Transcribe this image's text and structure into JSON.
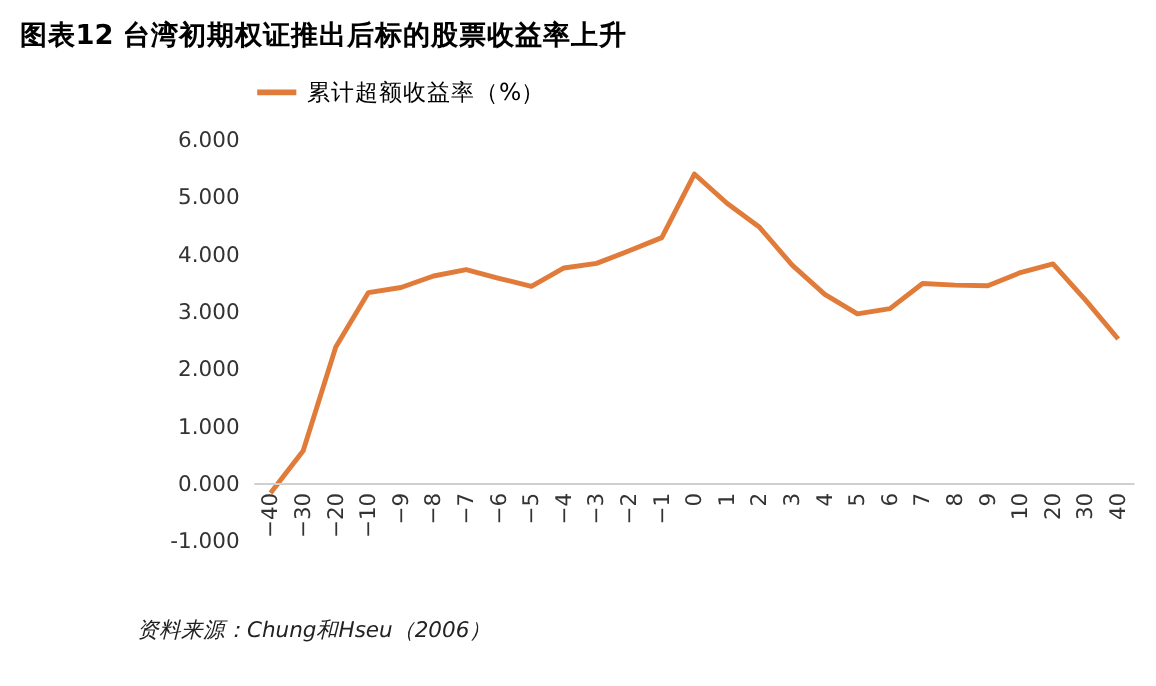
{
  "chart_data": {
    "type": "line",
    "title": "图表12  台湾初期权证推出后标的股票收益率上升",
    "categories": [
      "−40",
      "−30",
      "−20",
      "−10",
      "−9",
      "−8",
      "−7",
      "−6",
      "−5",
      "−4",
      "−3",
      "−2",
      "−1",
      "0",
      "1",
      "2",
      "3",
      "4",
      "5",
      "6",
      "7",
      "8",
      "9",
      "10",
      "20",
      "30",
      "40"
    ],
    "series": [
      {
        "name": "累计超额收益率（%）",
        "color": "#e07b39",
        "values": [
          -0.16,
          0.58,
          2.39,
          3.34,
          3.43,
          3.63,
          3.74,
          3.59,
          3.45,
          3.77,
          3.85,
          4.07,
          4.3,
          5.41,
          4.9,
          4.48,
          3.82,
          3.31,
          2.97,
          3.06,
          3.5,
          3.47,
          3.46,
          3.69,
          3.84,
          3.21,
          2.53
        ]
      }
    ],
    "ylim": [
      -1,
      6
    ],
    "yticks": [
      {
        "value": -1,
        "label": "-1.000"
      },
      {
        "value": 0,
        "label": "0.000"
      },
      {
        "value": 1,
        "label": "1.000"
      },
      {
        "value": 2,
        "label": "2.000"
      },
      {
        "value": 3,
        "label": "3.000"
      },
      {
        "value": 4,
        "label": "4.000"
      },
      {
        "value": 5,
        "label": "5.000"
      },
      {
        "value": 6,
        "label": "6.000"
      }
    ],
    "grid": false,
    "legend": "top",
    "marker": "none",
    "line_style": "solid",
    "annotations": [
      "资料来源：Chung和Hseu（2006）"
    ]
  }
}
